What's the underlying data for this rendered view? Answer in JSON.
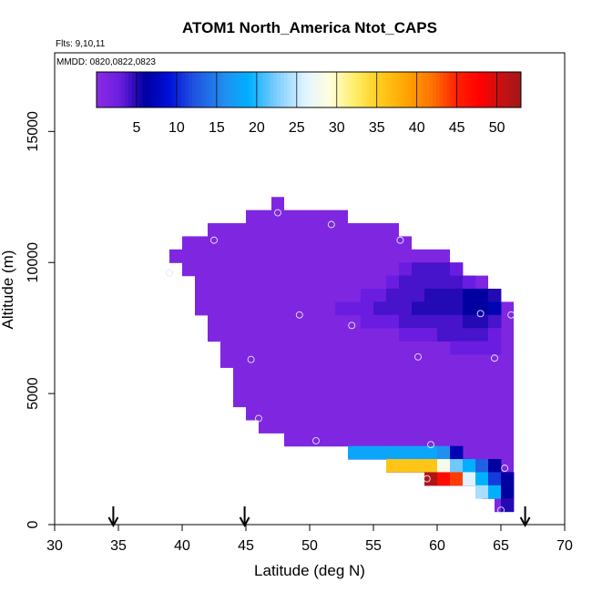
{
  "chart_data": {
    "type": "heatmap",
    "title": "ATOM1 North_America Ntot_CAPS",
    "flights_label": "Flts: 9,10,11",
    "mmdd_label": "MMDD: 0820,0822,0823",
    "xlabel": "Latitude (deg N)",
    "ylabel": "Altitude (m)",
    "xlim": [
      30,
      70
    ],
    "ylim": [
      0,
      18000
    ],
    "xticks": [
      "30",
      "35",
      "40",
      "45",
      "50",
      "55",
      "60",
      "65",
      "70"
    ],
    "yticks": [
      "0",
      "5000",
      "10000",
      "15000"
    ],
    "colorbar": {
      "range": [
        0,
        53
      ],
      "tick_labels": [
        "5",
        "10",
        "15",
        "20",
        "25",
        "30",
        "35",
        "40",
        "45",
        "50"
      ],
      "stops": [
        {
          "v": 0,
          "c": "#8a2be2"
        },
        {
          "v": 3,
          "c": "#6a1de0"
        },
        {
          "v": 6,
          "c": "#0000a0"
        },
        {
          "v": 9,
          "c": "#0010d8"
        },
        {
          "v": 12,
          "c": "#2050e0"
        },
        {
          "v": 16,
          "c": "#2090f0"
        },
        {
          "v": 19,
          "c": "#00b0ff"
        },
        {
          "v": 22,
          "c": "#70c8ff"
        },
        {
          "v": 26,
          "c": "#e0f4ff"
        },
        {
          "v": 29,
          "c": "#ffffe0"
        },
        {
          "v": 32,
          "c": "#fff070"
        },
        {
          "v": 35,
          "c": "#ffd020"
        },
        {
          "v": 39,
          "c": "#ffa000"
        },
        {
          "v": 42,
          "c": "#ff7000"
        },
        {
          "v": 45,
          "c": "#ff2000"
        },
        {
          "v": 48,
          "c": "#ff0000"
        },
        {
          "v": 50,
          "c": "#d01010"
        },
        {
          "v": 53,
          "c": "#a01818"
        }
      ]
    },
    "bin": {
      "lat_width": 1.0,
      "alt_height": 500
    },
    "background_value": 1,
    "envelope": [
      {
        "alt0": 500,
        "segments": [
          [
            64.5,
            66.0
          ]
        ]
      },
      {
        "alt0": 1000,
        "segments": [
          [
            63.5,
            66.0
          ]
        ]
      },
      {
        "alt0": 1500,
        "segments": [
          [
            59.0,
            66.0
          ]
        ]
      },
      {
        "alt0": 2000,
        "segments": [
          [
            56.0,
            66.0
          ]
        ]
      },
      {
        "alt0": 2500,
        "segments": [
          [
            53.0,
            66.0
          ]
        ]
      },
      {
        "alt0": 3000,
        "segments": [
          [
            48.0,
            66.0
          ]
        ]
      },
      {
        "alt0": 3500,
        "segments": [
          [
            46.0,
            66.0
          ]
        ]
      },
      {
        "alt0": 4000,
        "segments": [
          [
            45.0,
            66.0
          ]
        ]
      },
      {
        "alt0": 4500,
        "segments": [
          [
            44.0,
            66.0
          ]
        ]
      },
      {
        "alt0": 5000,
        "segments": [
          [
            44.0,
            66.0
          ]
        ]
      },
      {
        "alt0": 5500,
        "segments": [
          [
            44.0,
            66.0
          ]
        ]
      },
      {
        "alt0": 6000,
        "segments": [
          [
            43.0,
            66.0
          ]
        ]
      },
      {
        "alt0": 6500,
        "segments": [
          [
            43.0,
            66.0
          ]
        ]
      },
      {
        "alt0": 7000,
        "segments": [
          [
            42.0,
            66.0
          ]
        ]
      },
      {
        "alt0": 7500,
        "segments": [
          [
            42.0,
            66.0
          ]
        ]
      },
      {
        "alt0": 8000,
        "segments": [
          [
            41.0,
            66.0
          ]
        ]
      },
      {
        "alt0": 8500,
        "segments": [
          [
            41.0,
            65.0
          ]
        ]
      },
      {
        "alt0": 9000,
        "segments": [
          [
            41.0,
            64.0
          ]
        ]
      },
      {
        "alt0": 9500,
        "segments": [
          [
            40.0,
            62.0
          ]
        ]
      },
      {
        "alt0": 10000,
        "segments": [
          [
            39.0,
            61.0
          ]
        ]
      },
      {
        "alt0": 10500,
        "segments": [
          [
            40.0,
            58.0
          ]
        ]
      },
      {
        "alt0": 11000,
        "segments": [
          [
            42.0,
            57.0
          ]
        ]
      },
      {
        "alt0": 11500,
        "segments": [
          [
            45.0,
            53.0
          ]
        ]
      },
      {
        "alt0": 12000,
        "segments": [
          [
            47.0,
            48.0
          ]
        ]
      }
    ],
    "cells": [
      {
        "lat": 53,
        "alt": 2500,
        "v": 18
      },
      {
        "lat": 54,
        "alt": 2500,
        "v": 18
      },
      {
        "lat": 55,
        "alt": 2500,
        "v": 18
      },
      {
        "lat": 56,
        "alt": 2500,
        "v": 18
      },
      {
        "lat": 57,
        "alt": 2500,
        "v": 18
      },
      {
        "lat": 58,
        "alt": 2500,
        "v": 18
      },
      {
        "lat": 59,
        "alt": 2500,
        "v": 18
      },
      {
        "lat": 60,
        "alt": 2500,
        "v": 16
      },
      {
        "lat": 61,
        "alt": 2500,
        "v": 7
      },
      {
        "lat": 56,
        "alt": 2000,
        "v": 36
      },
      {
        "lat": 57,
        "alt": 2000,
        "v": 36
      },
      {
        "lat": 58,
        "alt": 2000,
        "v": 36
      },
      {
        "lat": 59,
        "alt": 2000,
        "v": 36
      },
      {
        "lat": 60,
        "alt": 2000,
        "v": 28
      },
      {
        "lat": 61,
        "alt": 2000,
        "v": 22
      },
      {
        "lat": 62,
        "alt": 2000,
        "v": 19
      },
      {
        "lat": 63,
        "alt": 2000,
        "v": 13
      },
      {
        "lat": 64,
        "alt": 2000,
        "v": 6
      },
      {
        "lat": 59,
        "alt": 1500,
        "v": 52
      },
      {
        "lat": 60,
        "alt": 1500,
        "v": 47
      },
      {
        "lat": 61,
        "alt": 1500,
        "v": 44
      },
      {
        "lat": 62,
        "alt": 1500,
        "v": 26
      },
      {
        "lat": 63,
        "alt": 1500,
        "v": 19
      },
      {
        "lat": 64,
        "alt": 1500,
        "v": 11
      },
      {
        "lat": 65,
        "alt": 1500,
        "v": 6
      },
      {
        "lat": 63,
        "alt": 1000,
        "v": 24
      },
      {
        "lat": 64,
        "alt": 1000,
        "v": 19
      },
      {
        "lat": 65,
        "alt": 1000,
        "v": 6
      },
      {
        "lat": 65,
        "alt": 500,
        "v": 5
      },
      {
        "lat": 57,
        "alt": 9500,
        "v": 3
      },
      {
        "lat": 58,
        "alt": 9500,
        "v": 4
      },
      {
        "lat": 59,
        "alt": 9500,
        "v": 4
      },
      {
        "lat": 60,
        "alt": 9500,
        "v": 4
      },
      {
        "lat": 61,
        "alt": 9500,
        "v": 3
      },
      {
        "lat": 56,
        "alt": 9000,
        "v": 3
      },
      {
        "lat": 57,
        "alt": 9000,
        "v": 4
      },
      {
        "lat": 58,
        "alt": 9000,
        "v": 4
      },
      {
        "lat": 59,
        "alt": 9000,
        "v": 4
      },
      {
        "lat": 60,
        "alt": 9000,
        "v": 4
      },
      {
        "lat": 61,
        "alt": 9000,
        "v": 4
      },
      {
        "lat": 62,
        "alt": 9000,
        "v": 3
      },
      {
        "lat": 54,
        "alt": 8500,
        "v": 3
      },
      {
        "lat": 55,
        "alt": 8500,
        "v": 3
      },
      {
        "lat": 56,
        "alt": 8500,
        "v": 4
      },
      {
        "lat": 57,
        "alt": 8500,
        "v": 4
      },
      {
        "lat": 58,
        "alt": 8500,
        "v": 4
      },
      {
        "lat": 59,
        "alt": 8500,
        "v": 5
      },
      {
        "lat": 60,
        "alt": 8500,
        "v": 5
      },
      {
        "lat": 61,
        "alt": 8500,
        "v": 5
      },
      {
        "lat": 62,
        "alt": 8500,
        "v": 6
      },
      {
        "lat": 63,
        "alt": 8500,
        "v": 6
      },
      {
        "lat": 64,
        "alt": 8500,
        "v": 5
      },
      {
        "lat": 52,
        "alt": 8000,
        "v": 3
      },
      {
        "lat": 53,
        "alt": 8000,
        "v": 3
      },
      {
        "lat": 54,
        "alt": 8000,
        "v": 3
      },
      {
        "lat": 55,
        "alt": 8000,
        "v": 4
      },
      {
        "lat": 56,
        "alt": 8000,
        "v": 4
      },
      {
        "lat": 57,
        "alt": 8000,
        "v": 4
      },
      {
        "lat": 58,
        "alt": 8000,
        "v": 5
      },
      {
        "lat": 59,
        "alt": 8000,
        "v": 5
      },
      {
        "lat": 60,
        "alt": 8000,
        "v": 5
      },
      {
        "lat": 61,
        "alt": 8000,
        "v": 5
      },
      {
        "lat": 62,
        "alt": 8000,
        "v": 6
      },
      {
        "lat": 63,
        "alt": 8000,
        "v": 6
      },
      {
        "lat": 64,
        "alt": 8000,
        "v": 7
      },
      {
        "lat": 54,
        "alt": 7500,
        "v": 3
      },
      {
        "lat": 55,
        "alt": 7500,
        "v": 3
      },
      {
        "lat": 56,
        "alt": 7500,
        "v": 3
      },
      {
        "lat": 57,
        "alt": 7500,
        "v": 4
      },
      {
        "lat": 58,
        "alt": 7500,
        "v": 4
      },
      {
        "lat": 59,
        "alt": 7500,
        "v": 4
      },
      {
        "lat": 60,
        "alt": 7500,
        "v": 4
      },
      {
        "lat": 61,
        "alt": 7500,
        "v": 4
      },
      {
        "lat": 62,
        "alt": 7500,
        "v": 5
      },
      {
        "lat": 63,
        "alt": 7500,
        "v": 5
      },
      {
        "lat": 64,
        "alt": 7500,
        "v": 4
      },
      {
        "lat": 57,
        "alt": 7000,
        "v": 3
      },
      {
        "lat": 58,
        "alt": 7000,
        "v": 3
      },
      {
        "lat": 59,
        "alt": 7000,
        "v": 3
      },
      {
        "lat": 60,
        "alt": 7000,
        "v": 4
      },
      {
        "lat": 61,
        "alt": 7000,
        "v": 4
      },
      {
        "lat": 62,
        "alt": 7000,
        "v": 4
      },
      {
        "lat": 63,
        "alt": 7000,
        "v": 4
      },
      {
        "lat": 64,
        "alt": 7000,
        "v": 3
      },
      {
        "lat": 61,
        "alt": 6500,
        "v": 3
      },
      {
        "lat": 62,
        "alt": 6500,
        "v": 3
      },
      {
        "lat": 63,
        "alt": 6500,
        "v": 3
      },
      {
        "lat": 64,
        "alt": 6500,
        "v": 3
      }
    ],
    "sample_points": [
      {
        "lat": 47.5,
        "alt": 11900
      },
      {
        "lat": 51.7,
        "alt": 11450
      },
      {
        "lat": 42.5,
        "alt": 10850
      },
      {
        "lat": 57.1,
        "alt": 10850
      },
      {
        "lat": 39.0,
        "alt": 9600
      },
      {
        "lat": 49.2,
        "alt": 8000
      },
      {
        "lat": 53.3,
        "alt": 7600
      },
      {
        "lat": 63.4,
        "alt": 8050
      },
      {
        "lat": 65.8,
        "alt": 8000
      },
      {
        "lat": 45.4,
        "alt": 6300
      },
      {
        "lat": 58.5,
        "alt": 6400
      },
      {
        "lat": 64.5,
        "alt": 6350
      },
      {
        "lat": 46.0,
        "alt": 4050
      },
      {
        "lat": 50.5,
        "alt": 3200
      },
      {
        "lat": 59.5,
        "alt": 3050
      },
      {
        "lat": 65.3,
        "alt": 2150
      },
      {
        "lat": 59.2,
        "alt": 1750
      },
      {
        "lat": 65.0,
        "alt": 550
      }
    ],
    "flight_markers_lat": [
      34.6,
      44.9,
      66.9
    ]
  }
}
